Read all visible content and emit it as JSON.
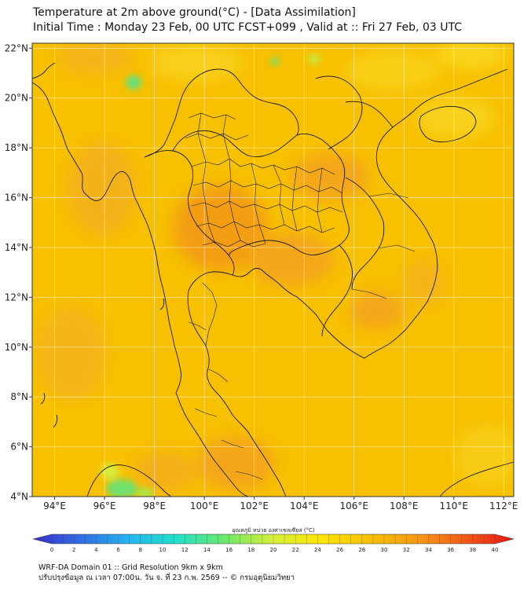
{
  "title": {
    "line1": "Temperature at 2m above ground(°C) - [Data Assimilation]",
    "line2": "Initial Time : Monday 23 Feb, 00 UTC FCST+099 , Valid at :: Fri 27 Feb, 03 UTC"
  },
  "map": {
    "lat_ticks": [
      "22°N",
      "20°N",
      "18°N",
      "16°N",
      "14°N",
      "12°N",
      "10°N",
      "8°N",
      "6°N",
      "4°N"
    ],
    "lon_ticks": [
      "94°E",
      "96°E",
      "98°E",
      "100°E",
      "102°E",
      "104°E",
      "106°E",
      "108°E",
      "110°E",
      "112°E"
    ],
    "lat_range": [
      4,
      22.2
    ],
    "lon_range": [
      93.1,
      112.4
    ],
    "field": "2m temperature",
    "base_color": "#f7c000",
    "hot_color": "#f39a18",
    "cool_color": "#5fdc6f"
  },
  "colorbar": {
    "title": "อุณหภูมิ หน่วย องศาเซลเซียส (°C)",
    "tick_labels": [
      "0",
      "2",
      "4",
      "6",
      "8",
      "10",
      "12",
      "14",
      "16",
      "18",
      "20",
      "22",
      "24",
      "26",
      "28",
      "30",
      "32",
      "34",
      "36",
      "38",
      "40"
    ],
    "min": 0,
    "max": 40,
    "colors": [
      "#3a2fc8",
      "#2f6fe6",
      "#23b6f0",
      "#23e0c8",
      "#6ee86a",
      "#d6f03a",
      "#ffe500",
      "#f7c000",
      "#f59a18",
      "#ef5a18",
      "#e81616"
    ]
  },
  "footer": {
    "line1": "WRF-DA Domain 01 :: Grid Resolution 9km x 9km",
    "line2": "ปรับปรุงข้อมูล ณ เวลา 07:00น. วัน จ. ที่ 23 ก.พ. 2569 -- © กรมอุตุนิยมวิทยา"
  }
}
